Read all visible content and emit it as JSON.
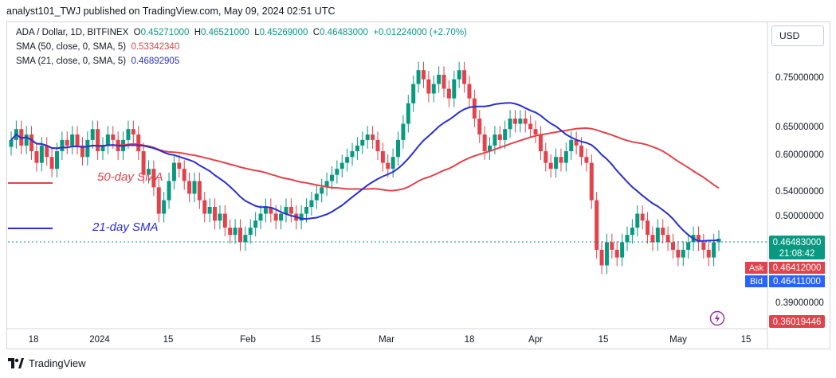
{
  "header": {
    "text": "analyst101_TWJ published on TradingView.com, May 09, 2024 02:51 UTC"
  },
  "legend": {
    "symbol": "ADA / Dollar, 1D, BITFINEX",
    "open_label": "O",
    "open": "0.45271000",
    "high_label": "H",
    "high": "0.46521000",
    "low_label": "L",
    "low": "0.45269000",
    "close_label": "C",
    "close": "0.46483000",
    "change": "+0.01224000 (+2.70%)",
    "sma50_label": "SMA (50, close, 0, SMA, 5)",
    "sma50_value": "0.53342340",
    "sma21_label": "SMA (21, close, 0, SMA, 5)",
    "sma21_value": "0.46892905"
  },
  "currency_button": "USD",
  "annotations": {
    "sma50_text": "50-day SMA",
    "sma21_text": "21-day SMA"
  },
  "price_tags": {
    "last_price": "0.46483000",
    "countdown": "21:08:42",
    "ask_label": "Ask",
    "ask": "0.46412000",
    "bid_label": "Bid",
    "bid": "0.46411000",
    "low_marker": "0.36019446"
  },
  "footer": {
    "brand": "TradingView"
  },
  "colors": {
    "up": "#089981",
    "down": "#e2424b",
    "sma21": "#2a2fd1",
    "sma50": "#e2424b",
    "ask_bg": "#e2424b",
    "bid_bg": "#2962ff",
    "price_tag_bg": "#089981"
  },
  "chart_data": {
    "type": "candlestick",
    "symbol": "ADA / Dollar, 1D, BITFINEX",
    "y_scale": "log",
    "y_ticks": [
      "0.75000000",
      "0.65000000",
      "0.60000000",
      "0.54000000",
      "0.50000000",
      "0.39000000"
    ],
    "x_ticks": [
      "18",
      "2024",
      "15",
      "Feb",
      "15",
      "Mar",
      "18",
      "Apr",
      "15",
      "May",
      "15"
    ],
    "series": [
      {
        "name": "SMA (50, close, 0, SMA, 5)",
        "last": 0.5334234
      },
      {
        "name": "SMA (21, close, 0, SMA, 5)",
        "last": 0.46892905
      }
    ]
  }
}
